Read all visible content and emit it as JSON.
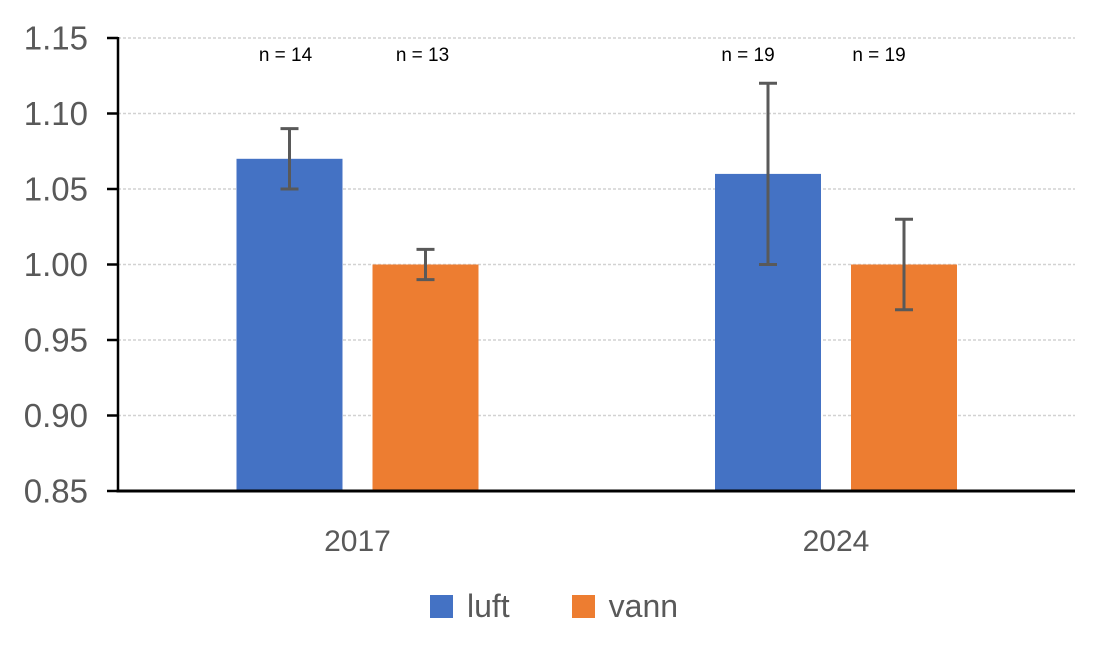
{
  "chart_data": {
    "type": "bar",
    "title": "",
    "xlabel": "",
    "ylabel": "",
    "categories": [
      "2017",
      "2024"
    ],
    "series": [
      {
        "name": "luft",
        "color": "#4472C4",
        "values": [
          1.07,
          1.06
        ],
        "error_high": [
          1.09,
          1.12
        ],
        "error_low": [
          1.05,
          1.0
        ],
        "n_labels": [
          "n = 14",
          "n = 19"
        ]
      },
      {
        "name": "vann",
        "color": "#ED7D31",
        "values": [
          1.0,
          1.0
        ],
        "error_high": [
          1.01,
          1.03
        ],
        "error_low": [
          0.99,
          0.97
        ],
        "n_labels": [
          "n = 13",
          "n = 19"
        ]
      }
    ],
    "ylim": [
      0.85,
      1.15
    ],
    "ytick_values": [
      1.15,
      1.1,
      1.05,
      1.0,
      0.95,
      0.9,
      0.85
    ],
    "ytick_labels": [
      "1.15",
      "1.10",
      "1.05",
      "1.00",
      "0.95",
      "0.90",
      "0.85"
    ],
    "grid": true,
    "gridline_color": "#D2D2D2",
    "axis_line_color": "#000000",
    "axis_text_color": "#595959",
    "annotation_color": "#000000",
    "error_bar_color": "#595959",
    "legend": {
      "position": "bottom",
      "entries": [
        "luft",
        "vann"
      ]
    }
  }
}
